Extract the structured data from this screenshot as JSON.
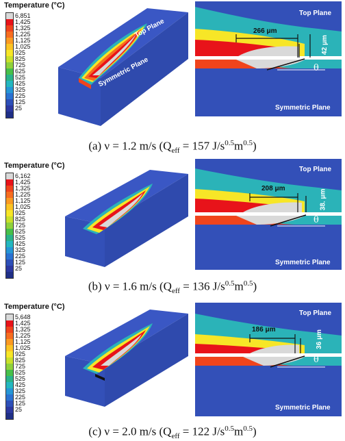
{
  "legend_title": "Temperature (°C)",
  "legend_colors": [
    "#d9d9d9",
    "#e8131a",
    "#f0441c",
    "#f76d20",
    "#fb9a22",
    "#fcc423",
    "#f7e627",
    "#c9e02a",
    "#8fd13b",
    "#47c04a",
    "#2ab38a",
    "#24b7c0",
    "#2596d6",
    "#2a72d1",
    "#2d4fb8",
    "#2c38a0",
    "#1f2f86"
  ],
  "panels": [
    {
      "max_label": "6,851",
      "scale_labels": [
        "1,425",
        "1,325",
        "1,225",
        "1,125",
        "1,025",
        "925",
        "825",
        "725",
        "625",
        "525",
        "425",
        "325",
        "225",
        "125",
        "25"
      ],
      "top_plane": "Top Plane",
      "symmetric_plane": "Symmetric Plane",
      "length": "266 μm",
      "depth": "42 μm",
      "theta": "θ",
      "caption_prefix": "(a)  ν  = 1.2 m/s (Q",
      "caption_sub": "eff",
      "caption_mid": " = 157 J/s",
      "caption_sup1": "0.5",
      "caption_m": "m",
      "caption_sup2": "0.5",
      "caption_end": ")"
    },
    {
      "max_label": "6,162",
      "scale_labels": [
        "1,425",
        "1,325",
        "1,225",
        "1,125",
        "1,025",
        "925",
        "825",
        "725",
        "625",
        "525",
        "425",
        "325",
        "225",
        "125",
        "25"
      ],
      "top_plane": "Top Plane",
      "symmetric_plane": "Symmetric Plane",
      "length": "208 μm",
      "depth": "38. μm",
      "theta": "θ",
      "caption_prefix": "(b)  ν  = 1.6 m/s (Q",
      "caption_sub": "eff",
      "caption_mid": " = 136 J/s",
      "caption_sup1": "0.5",
      "caption_m": "m",
      "caption_sup2": "0.5",
      "caption_end": ")"
    },
    {
      "max_label": "5,648",
      "scale_labels": [
        "1,425",
        "1,325",
        "1,225",
        "1,125",
        "1,025",
        "925",
        "825",
        "725",
        "625",
        "525",
        "425",
        "325",
        "225",
        "125",
        "25"
      ],
      "top_plane": "Top Plane",
      "symmetric_plane": "Symmetric Plane",
      "length": "186 μm",
      "depth": "36 μm",
      "theta": "θ",
      "caption_prefix": "(c)  ν  = 2.0 m/s (Q",
      "caption_sub": "eff",
      "caption_mid": " = 122 J/s",
      "caption_sup1": "0.5",
      "caption_m": "m",
      "caption_sup2": "0.5",
      "caption_end": ")"
    }
  ]
}
